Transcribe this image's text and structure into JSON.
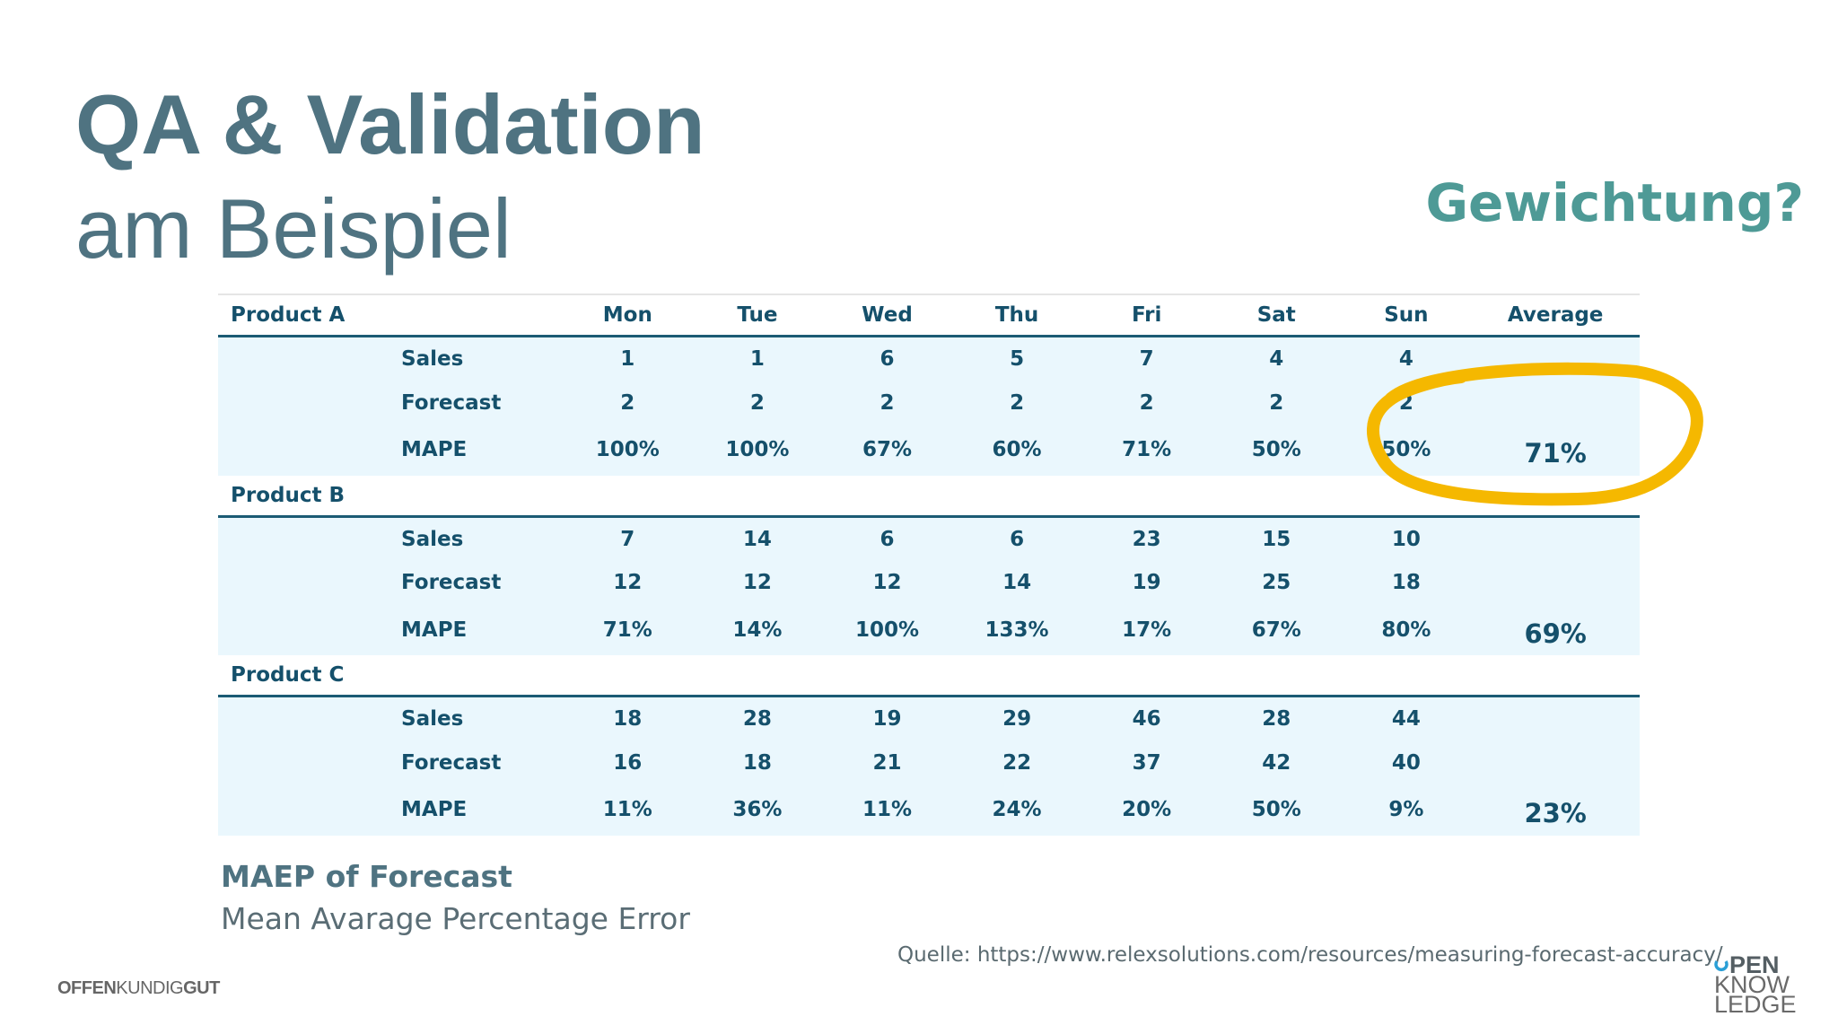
{
  "slide": {
    "title": "QA & Validation",
    "subtitle": "am Beispiel",
    "question": "Gewichtung?"
  },
  "table": {
    "days": [
      "Mon",
      "Tue",
      "Wed",
      "Thu",
      "Fri",
      "Sat",
      "Sun"
    ],
    "average_label": "Average",
    "metric_labels": {
      "sales": "Sales",
      "forecast": "Forecast",
      "mape": "MAPE"
    },
    "products": [
      {
        "name": "Product A",
        "sales": [
          "1",
          "1",
          "6",
          "5",
          "7",
          "4",
          "4"
        ],
        "forecast": [
          "2",
          "2",
          "2",
          "2",
          "2",
          "2",
          "2"
        ],
        "mape": [
          "100%",
          "100%",
          "67%",
          "60%",
          "71%",
          "50%",
          "50%"
        ],
        "average": "71%"
      },
      {
        "name": "Product B",
        "sales": [
          "7",
          "14",
          "6",
          "6",
          "23",
          "15",
          "10"
        ],
        "forecast": [
          "12",
          "12",
          "12",
          "14",
          "19",
          "25",
          "18"
        ],
        "mape": [
          "71%",
          "14%",
          "100%",
          "133%",
          "17%",
          "67%",
          "80%"
        ],
        "average": "69%"
      },
      {
        "name": "Product C",
        "sales": [
          "18",
          "28",
          "19",
          "29",
          "46",
          "28",
          "44"
        ],
        "forecast": [
          "16",
          "18",
          "21",
          "22",
          "37",
          "42",
          "40"
        ],
        "mape": [
          "11%",
          "36%",
          "11%",
          "24%",
          "20%",
          "50%",
          "9%"
        ],
        "average": "23%"
      }
    ]
  },
  "annotation": {
    "highlight_color": "#f5b800"
  },
  "footer": {
    "title": "MAEP of Forecast",
    "subtitle": "Mean Avarage Percentage Error",
    "source": "Quelle: https://www.relexsolutions.com/resources/measuring-forecast-accuracy/"
  },
  "branding": {
    "left_part1": "OFFEN",
    "left_part2": "KUNDIG",
    "left_part3": "GUT",
    "right_line1": "PEN",
    "right_line2": "KNOW",
    "right_line3": "LEDGE",
    "accent_color": "#2a9fd6"
  }
}
